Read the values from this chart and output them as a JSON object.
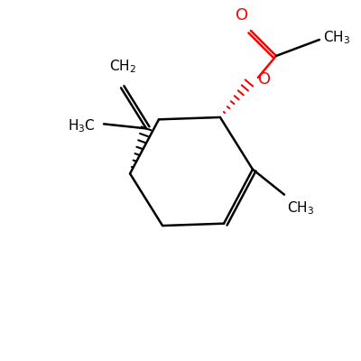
{
  "background": "#ffffff",
  "bond_color": "#000000",
  "red_color": "#ff0000",
  "line_width": 1.8
}
